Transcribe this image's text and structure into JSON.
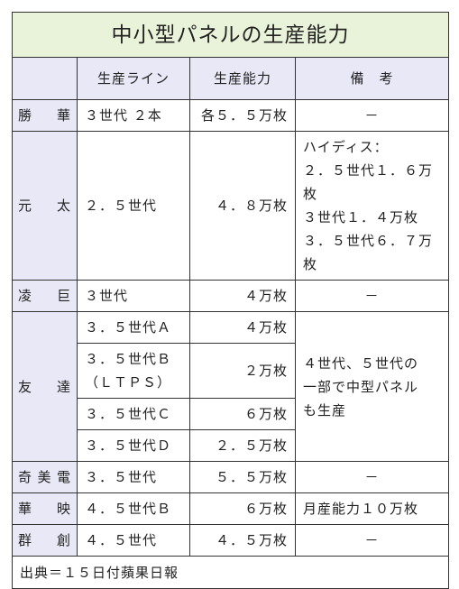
{
  "table": {
    "title": "中小型パネルの生産能力",
    "header": [
      "生産ライン",
      "生産能力",
      "備　考"
    ],
    "rows": [
      {
        "company": "勝華",
        "lines": [
          {
            "line": "３世代 ２本",
            "capacity": "各５．５万枚"
          }
        ],
        "note": "－"
      },
      {
        "company": "元太",
        "lines": [
          {
            "line": "２．５世代",
            "capacity": "４．８万枚"
          }
        ],
        "note": "ハイディス：\n２．５世代１．６万枚\n３世代１．４万枚\n３．５世代６．７万枚"
      },
      {
        "company": "凌巨",
        "lines": [
          {
            "line": "３世代",
            "capacity": "４万枚"
          }
        ],
        "note": "－"
      },
      {
        "company": "友達",
        "lines": [
          {
            "line": "３．５世代Ａ",
            "capacity": "４万枚"
          },
          {
            "line": "３．５世代Ｂ\n（ＬＴＰＳ）",
            "capacity": "２万枚"
          },
          {
            "line": "３．５世代Ｃ",
            "capacity": "６万枚"
          },
          {
            "line": "３．５世代Ｄ",
            "capacity": "２．５万枚"
          }
        ],
        "note": "４世代、５世代の\n一部で中型パネル\nも生産"
      },
      {
        "company": "奇美電",
        "lines": [
          {
            "line": "３．５世代",
            "capacity": "５．５万枚"
          }
        ],
        "note": "－"
      },
      {
        "company": "華映",
        "lines": [
          {
            "line": "４．５世代Ｂ",
            "capacity": "６万枚"
          }
        ],
        "note": "月産能力１０万枚"
      },
      {
        "company": "群創",
        "lines": [
          {
            "line": "４．５世代",
            "capacity": "４．５万枚"
          }
        ],
        "note": "－"
      }
    ],
    "source": "出典＝１５日付蘋果日報"
  }
}
